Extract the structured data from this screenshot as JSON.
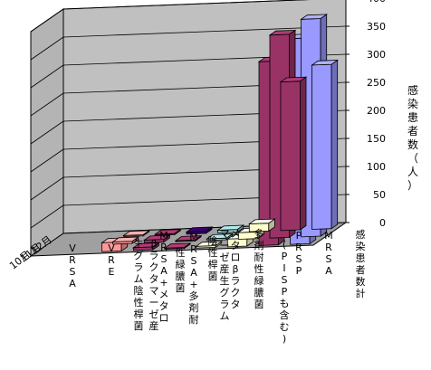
{
  "chart_data": {
    "type": "bar",
    "style": "3d-clustered-column",
    "categories": [
      "VRSA",
      "VRE",
      "多剤耐性緑膿菌",
      "MRSA+メタロβラクタマーゼ産生グラム陰性桿菌",
      "MRSA+多剤耐性緑膿菌",
      "メタロβラクタマーゼ産生グラム陰性桿菌",
      "PRSP（PISPも含む）",
      "MRSA",
      "感染患者数計"
    ],
    "x_tick_labels": [
      "VRSA",
      "VRE",
      "生グラム陰性桿菌",
      "βラクタマーゼ産",
      "MRSA+メタロ",
      "性緑膿菌",
      "MRSA+多剤耐",
      "陰性桿菌",
      "マーゼ産生グラム",
      "メタロβラクタ",
      "多剤耐性緑膿菌",
      "(PISPも含む)",
      "PRSP",
      "MRSA",
      "感染患者数計"
    ],
    "series": [
      {
        "name": "10月",
        "values": [
          0,
          0,
          16,
          5,
          2,
          3,
          14,
          328,
          367
        ],
        "colors": [
          "#ff9999",
          "#ff9999",
          "#ff9999",
          "#993366",
          "#993366",
          "#ffffcc",
          "#ffffcc",
          "#993366",
          "#9999ff"
        ]
      },
      {
        "name": "11月",
        "values": [
          0,
          0,
          4,
          5,
          2,
          3,
          12,
          362,
          388
        ],
        "colors": [
          "#ff9999",
          "#ff9999",
          "#ff9999",
          "#993366",
          "#993366",
          "#99cccc",
          "#ffffcc",
          "#993366",
          "#9999ff"
        ]
      },
      {
        "name": "12月",
        "values": [
          0,
          0,
          2,
          2,
          4,
          5,
          14,
          265,
          293
        ],
        "colors": [
          "#ff9999",
          "#ff9999",
          "#ff9999",
          "#993366",
          "#330066",
          "#99cccc",
          "#ffffcc",
          "#993366",
          "#9999ff"
        ]
      }
    ],
    "ylabel": "感染患者数（人）",
    "ylim": [
      0,
      400
    ],
    "yticks": [
      0,
      50,
      100,
      150,
      200,
      250,
      300,
      350,
      400
    ],
    "grid": true
  }
}
